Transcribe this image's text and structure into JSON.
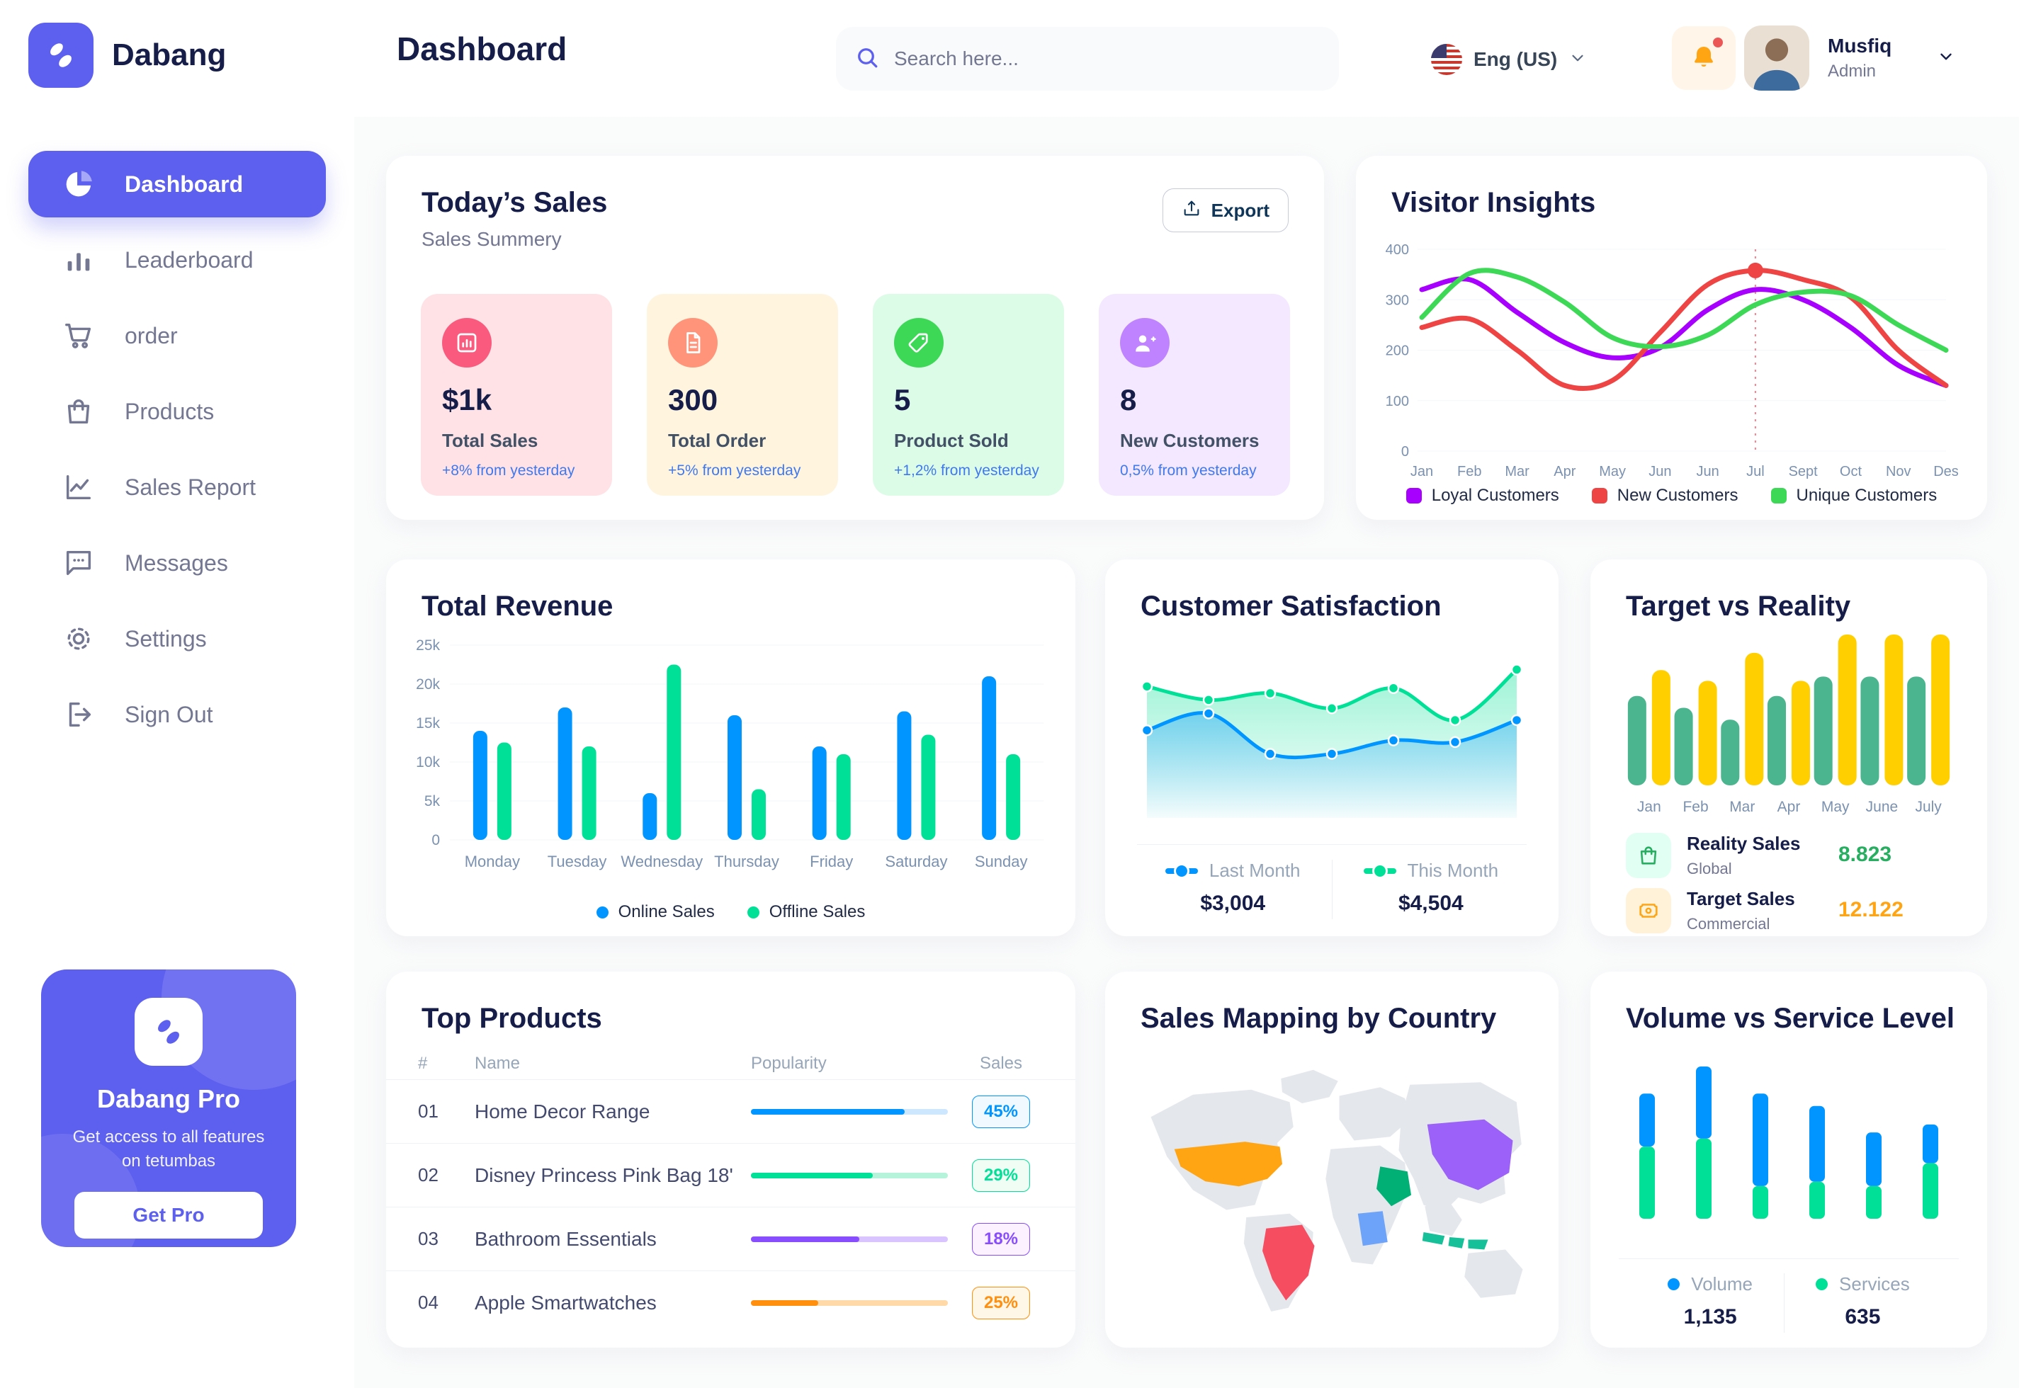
{
  "app": {
    "name": "Dabang"
  },
  "header": {
    "title": "Dashboard",
    "search_placeholder": "Search here...",
    "language": "Eng (US)",
    "user_name": "Musfiq",
    "user_role": "Admin"
  },
  "sidebar": {
    "items": [
      {
        "label": "Dashboard",
        "icon": "pie",
        "active": true
      },
      {
        "label": "Leaderboard",
        "icon": "bar"
      },
      {
        "label": "order",
        "icon": "cart"
      },
      {
        "label": "Products",
        "icon": "bag"
      },
      {
        "label": "Sales Report",
        "icon": "chartline"
      },
      {
        "label": "Messages",
        "icon": "chat"
      },
      {
        "label": "Settings",
        "icon": "gear"
      },
      {
        "label": "Sign Out",
        "icon": "signout"
      }
    ],
    "pro": {
      "title": "Dabang Pro",
      "description": "Get access to all features on tetumbas",
      "cta": "Get Pro"
    }
  },
  "today_sales": {
    "title": "Today’s Sales",
    "subtitle": "Sales Summery",
    "export_label": "Export",
    "cards": [
      {
        "value": "$1k",
        "label": "Total Sales",
        "delta": "+8% from yesterday",
        "bg": "#FFE2E5",
        "icon_bg": "#FA5A7D",
        "icon": "bar-chart"
      },
      {
        "value": "300",
        "label": "Total Order",
        "delta": "+5% from yesterday",
        "bg": "#FFF4DE",
        "icon_bg": "#FF947A",
        "icon": "file-list"
      },
      {
        "value": "5",
        "label": "Product Sold",
        "delta": "+1,2% from yesterday",
        "bg": "#DCFCE7",
        "icon_bg": "#3CD856",
        "icon": "tag"
      },
      {
        "value": "8",
        "label": "New Customers",
        "delta": "0,5% from yesterday",
        "bg": "#F3E8FF",
        "icon_bg": "#BF83FF",
        "icon": "user-plus"
      }
    ]
  },
  "chart_data": [
    {
      "id": "visitor_insights",
      "type": "line",
      "title": "Visitor Insights",
      "x": [
        "Jan",
        "Feb",
        "Mar",
        "Apr",
        "May",
        "Jun",
        "Jun",
        "Jul",
        "Sept",
        "Oct",
        "Nov",
        "Des"
      ],
      "ylim": [
        0,
        400
      ],
      "yticks": [
        0,
        100,
        200,
        300,
        400
      ],
      "grid": true,
      "legend_position": "bottom",
      "series": [
        {
          "name": "Loyal Customers",
          "color": "#A700FF",
          "values": [
            320,
            340,
            275,
            215,
            185,
            205,
            280,
            320,
            300,
            245,
            170,
            130
          ]
        },
        {
          "name": "New Customers",
          "color": "#EF4444",
          "values": [
            245,
            262,
            200,
            130,
            140,
            235,
            330,
            358,
            340,
            305,
            200,
            130
          ]
        },
        {
          "name": "Unique Customers",
          "color": "#3CD856",
          "values": [
            265,
            352,
            345,
            295,
            225,
            207,
            230,
            290,
            315,
            308,
            250,
            200
          ]
        }
      ],
      "highlight": {
        "series": "New Customers",
        "index": 7,
        "label": "Jul",
        "value": 358
      }
    },
    {
      "id": "total_revenue",
      "type": "bar",
      "title": "Total Revenue",
      "categories": [
        "Monday",
        "Tuesday",
        "Wednesday",
        "Thursday",
        "Friday",
        "Saturday",
        "Sunday"
      ],
      "ylim": [
        0,
        25
      ],
      "yticks": [
        0,
        5,
        10,
        15,
        20,
        25
      ],
      "ylabels": [
        "0",
        "5k",
        "10k",
        "15k",
        "20k",
        "25k"
      ],
      "grid": true,
      "legend_position": "bottom",
      "series": [
        {
          "name": "Online Sales",
          "color": "#0095FF",
          "values": [
            14,
            17,
            6,
            16,
            12,
            16.5,
            21
          ]
        },
        {
          "name": "Offline Sales",
          "color": "#00E096",
          "values": [
            12.5,
            12,
            22.5,
            6.5,
            11,
            13.5,
            11
          ]
        }
      ]
    },
    {
      "id": "customer_satisfaction",
      "type": "area",
      "title": "Customer Satisfaction",
      "ylim": [
        0,
        100
      ],
      "grid": false,
      "legend_position": "bottom",
      "series": [
        {
          "name": "Last Month",
          "color": "#0095FF",
          "total": "$3,004",
          "values": [
            52,
            62,
            38,
            38,
            46,
            45,
            58
          ]
        },
        {
          "name": "This Month",
          "color": "#00E096",
          "total": "$4,504",
          "values": [
            78,
            70,
            74,
            65,
            77,
            58,
            88
          ]
        }
      ]
    },
    {
      "id": "target_vs_reality",
      "type": "bar",
      "title": "Target vs Reality",
      "categories": [
        "Jan",
        "Feb",
        "Mar",
        "Apr",
        "May",
        "June",
        "July"
      ],
      "ylim": [
        0,
        14
      ],
      "grid": false,
      "legend_position": "bottom-list",
      "series": [
        {
          "name": "Reality Sales",
          "color": "#4AB58E",
          "values": [
            8.3,
            7.2,
            6.1,
            8.3,
            10.1,
            10.1,
            10.1
          ]
        },
        {
          "name": "Target Sales",
          "color": "#FFCF00",
          "values": [
            10.7,
            9.7,
            12.3,
            9.7,
            14,
            14,
            14
          ]
        }
      ],
      "legend": [
        {
          "name": "Reality Sales",
          "sub": "Global",
          "value": "8.823",
          "value_color": "#27AE60",
          "icon_bg": "#E2FFF3",
          "icon": "bag"
        },
        {
          "name": "Target Sales",
          "sub": "Commercial",
          "value": "12.122",
          "value_color": "#FFA412",
          "icon_bg": "#FFF2D8",
          "icon": "ticket"
        }
      ]
    },
    {
      "id": "volume_service",
      "type": "stacked-bar",
      "title": "Volume vs Service Level",
      "grid": false,
      "legend_position": "bottom",
      "series": [
        {
          "name": "Volume",
          "color": "#0095FF",
          "total": "1,135",
          "values": [
            86,
            117,
            150,
            123,
            87,
            63
          ]
        },
        {
          "name": "Services",
          "color": "#00E096",
          "total": "635",
          "values": [
            117,
            130,
            53,
            60,
            53,
            90
          ]
        }
      ]
    },
    {
      "id": "sales_map",
      "type": "map",
      "title": "Sales Mapping by Country",
      "countries": [
        {
          "name": "United States",
          "color": "#FFA412"
        },
        {
          "name": "Brazil",
          "color": "#F64E60"
        },
        {
          "name": "Saudi Arabia",
          "color": "#00B074"
        },
        {
          "name": "DR Congo",
          "color": "#6DA3F8"
        },
        {
          "name": "China",
          "color": "#9B61F8"
        },
        {
          "name": "Indonesia",
          "color": "#16C098"
        }
      ]
    }
  ],
  "top_products": {
    "title": "Top Products",
    "columns": [
      "#",
      "Name",
      "Popularity",
      "Sales"
    ],
    "rows": [
      {
        "num": "01",
        "name": "Home Decor Range",
        "popularity": 78,
        "sales": "45%",
        "color": "#0095FF",
        "track": "#CDE7FF",
        "badge_bg": "#F0F9FF"
      },
      {
        "num": "02",
        "name": "Disney Princess Pink Bag 18'",
        "popularity": 62,
        "sales": "29%",
        "color": "#00E096",
        "track": "#B5F3DB",
        "badge_bg": "#F0FDF4"
      },
      {
        "num": "03",
        "name": "Bathroom Essentials",
        "popularity": 55,
        "sales": "18%",
        "color": "#884DFF",
        "track": "#D9C4FF",
        "badge_bg": "#FBF1FF"
      },
      {
        "num": "04",
        "name": "Apple Smartwatches",
        "popularity": 34,
        "sales": "25%",
        "color": "#FF8F0D",
        "track": "#FFD9A7",
        "badge_bg": "#FEF6E6"
      }
    ]
  }
}
